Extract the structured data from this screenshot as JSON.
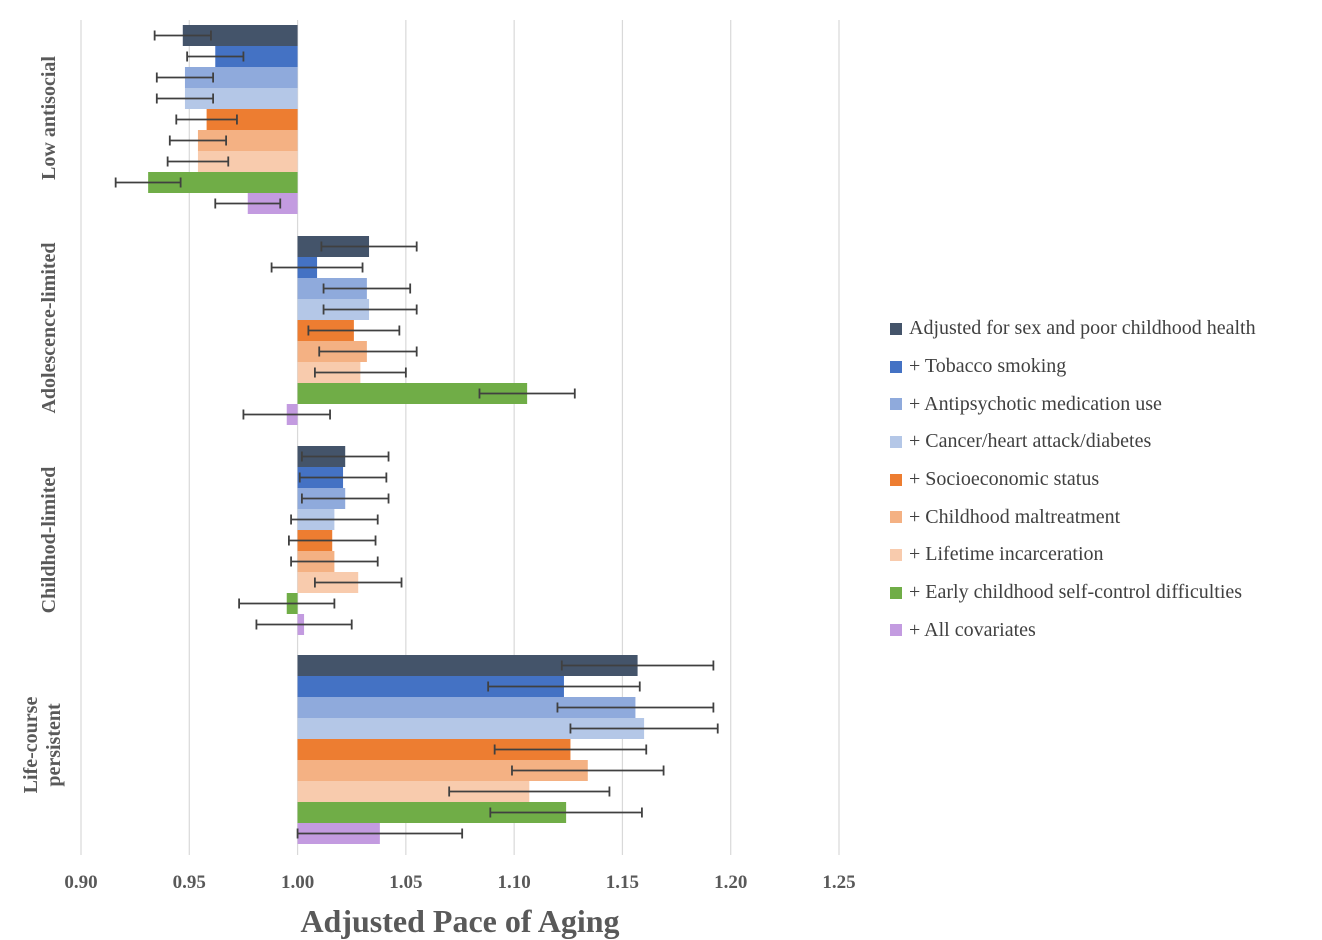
{
  "chart_data": {
    "type": "bar",
    "orientation": "horizontal",
    "baseline": 1.0,
    "title": "",
    "xlabel": "Adjusted Pace of Aging",
    "ylabel": "",
    "xlim": [
      0.9,
      1.25
    ],
    "x_ticks": [
      "0.90",
      "0.95",
      "1.00",
      "1.05",
      "1.10",
      "1.15",
      "1.20",
      "1.25"
    ],
    "x_tick_values": [
      0.9,
      0.95,
      1.0,
      1.05,
      1.1,
      1.15,
      1.2,
      1.25
    ],
    "grid": "vertical",
    "legend_position": "right",
    "categories": [
      {
        "label": "Low antisocial",
        "lines": [
          "Low antisocial"
        ]
      },
      {
        "label": "Adolescence-limited",
        "lines": [
          "Adolescence-limited"
        ]
      },
      {
        "label": "Childhod-limited",
        "lines": [
          "Childhod-limited"
        ]
      },
      {
        "label": "Life-course persistent",
        "lines": [
          "Life-course",
          "persistent"
        ]
      }
    ],
    "series": [
      {
        "name": "Adjusted for sex and poor childhood health",
        "color": "#44546a",
        "values": [
          0.947,
          1.033,
          1.022,
          1.157
        ],
        "err_low": [
          0.934,
          1.011,
          1.002,
          1.122
        ],
        "err_high": [
          0.96,
          1.055,
          1.042,
          1.192
        ]
      },
      {
        "name": "+ Tobacco smoking",
        "color": "#4472c4",
        "values": [
          0.962,
          1.009,
          1.021,
          1.123
        ],
        "err_low": [
          0.949,
          0.988,
          1.001,
          1.088
        ],
        "err_high": [
          0.975,
          1.03,
          1.041,
          1.158
        ]
      },
      {
        "name": "+ Antipsychotic medication use",
        "color": "#8faadc",
        "values": [
          0.948,
          1.032,
          1.022,
          1.156
        ],
        "err_low": [
          0.935,
          1.012,
          1.002,
          1.12
        ],
        "err_high": [
          0.961,
          1.052,
          1.042,
          1.192
        ]
      },
      {
        "name": "+ Cancer/heart attack/diabetes",
        "color": "#b4c7e7",
        "values": [
          0.948,
          1.033,
          1.017,
          1.16
        ],
        "err_low": [
          0.935,
          1.012,
          0.997,
          1.126
        ],
        "err_high": [
          0.961,
          1.055,
          1.037,
          1.194
        ]
      },
      {
        "name": "+ Socioeconomic status",
        "color": "#ed7d31",
        "values": [
          0.958,
          1.026,
          1.016,
          1.126
        ],
        "err_low": [
          0.944,
          1.005,
          0.996,
          1.091
        ],
        "err_high": [
          0.972,
          1.047,
          1.036,
          1.161
        ]
      },
      {
        "name": "+ Childhood maltreatment",
        "color": "#f4b183",
        "values": [
          0.954,
          1.032,
          1.017,
          1.134
        ],
        "err_low": [
          0.941,
          1.01,
          0.997,
          1.099
        ],
        "err_high": [
          0.967,
          1.055,
          1.037,
          1.169
        ]
      },
      {
        "name": "+ Lifetime incarceration",
        "color": "#f8cbad",
        "values": [
          0.954,
          1.029,
          1.028,
          1.107
        ],
        "err_low": [
          0.94,
          1.008,
          1.008,
          1.07
        ],
        "err_high": [
          0.968,
          1.05,
          1.048,
          1.144
        ]
      },
      {
        "name": "+ Early childhood self-control difficulties",
        "color": "#70ad47",
        "values": [
          0.931,
          1.106,
          0.995,
          1.124
        ],
        "err_low": [
          0.916,
          1.084,
          0.973,
          1.089
        ],
        "err_high": [
          0.946,
          1.128,
          1.017,
          1.159
        ]
      },
      {
        "name": "+ All covariates",
        "color": "#c39be0",
        "values": [
          0.977,
          0.995,
          1.003,
          1.038
        ],
        "err_low": [
          0.962,
          0.975,
          0.981,
          1.0
        ],
        "err_high": [
          0.992,
          1.015,
          1.025,
          1.076
        ]
      }
    ]
  }
}
